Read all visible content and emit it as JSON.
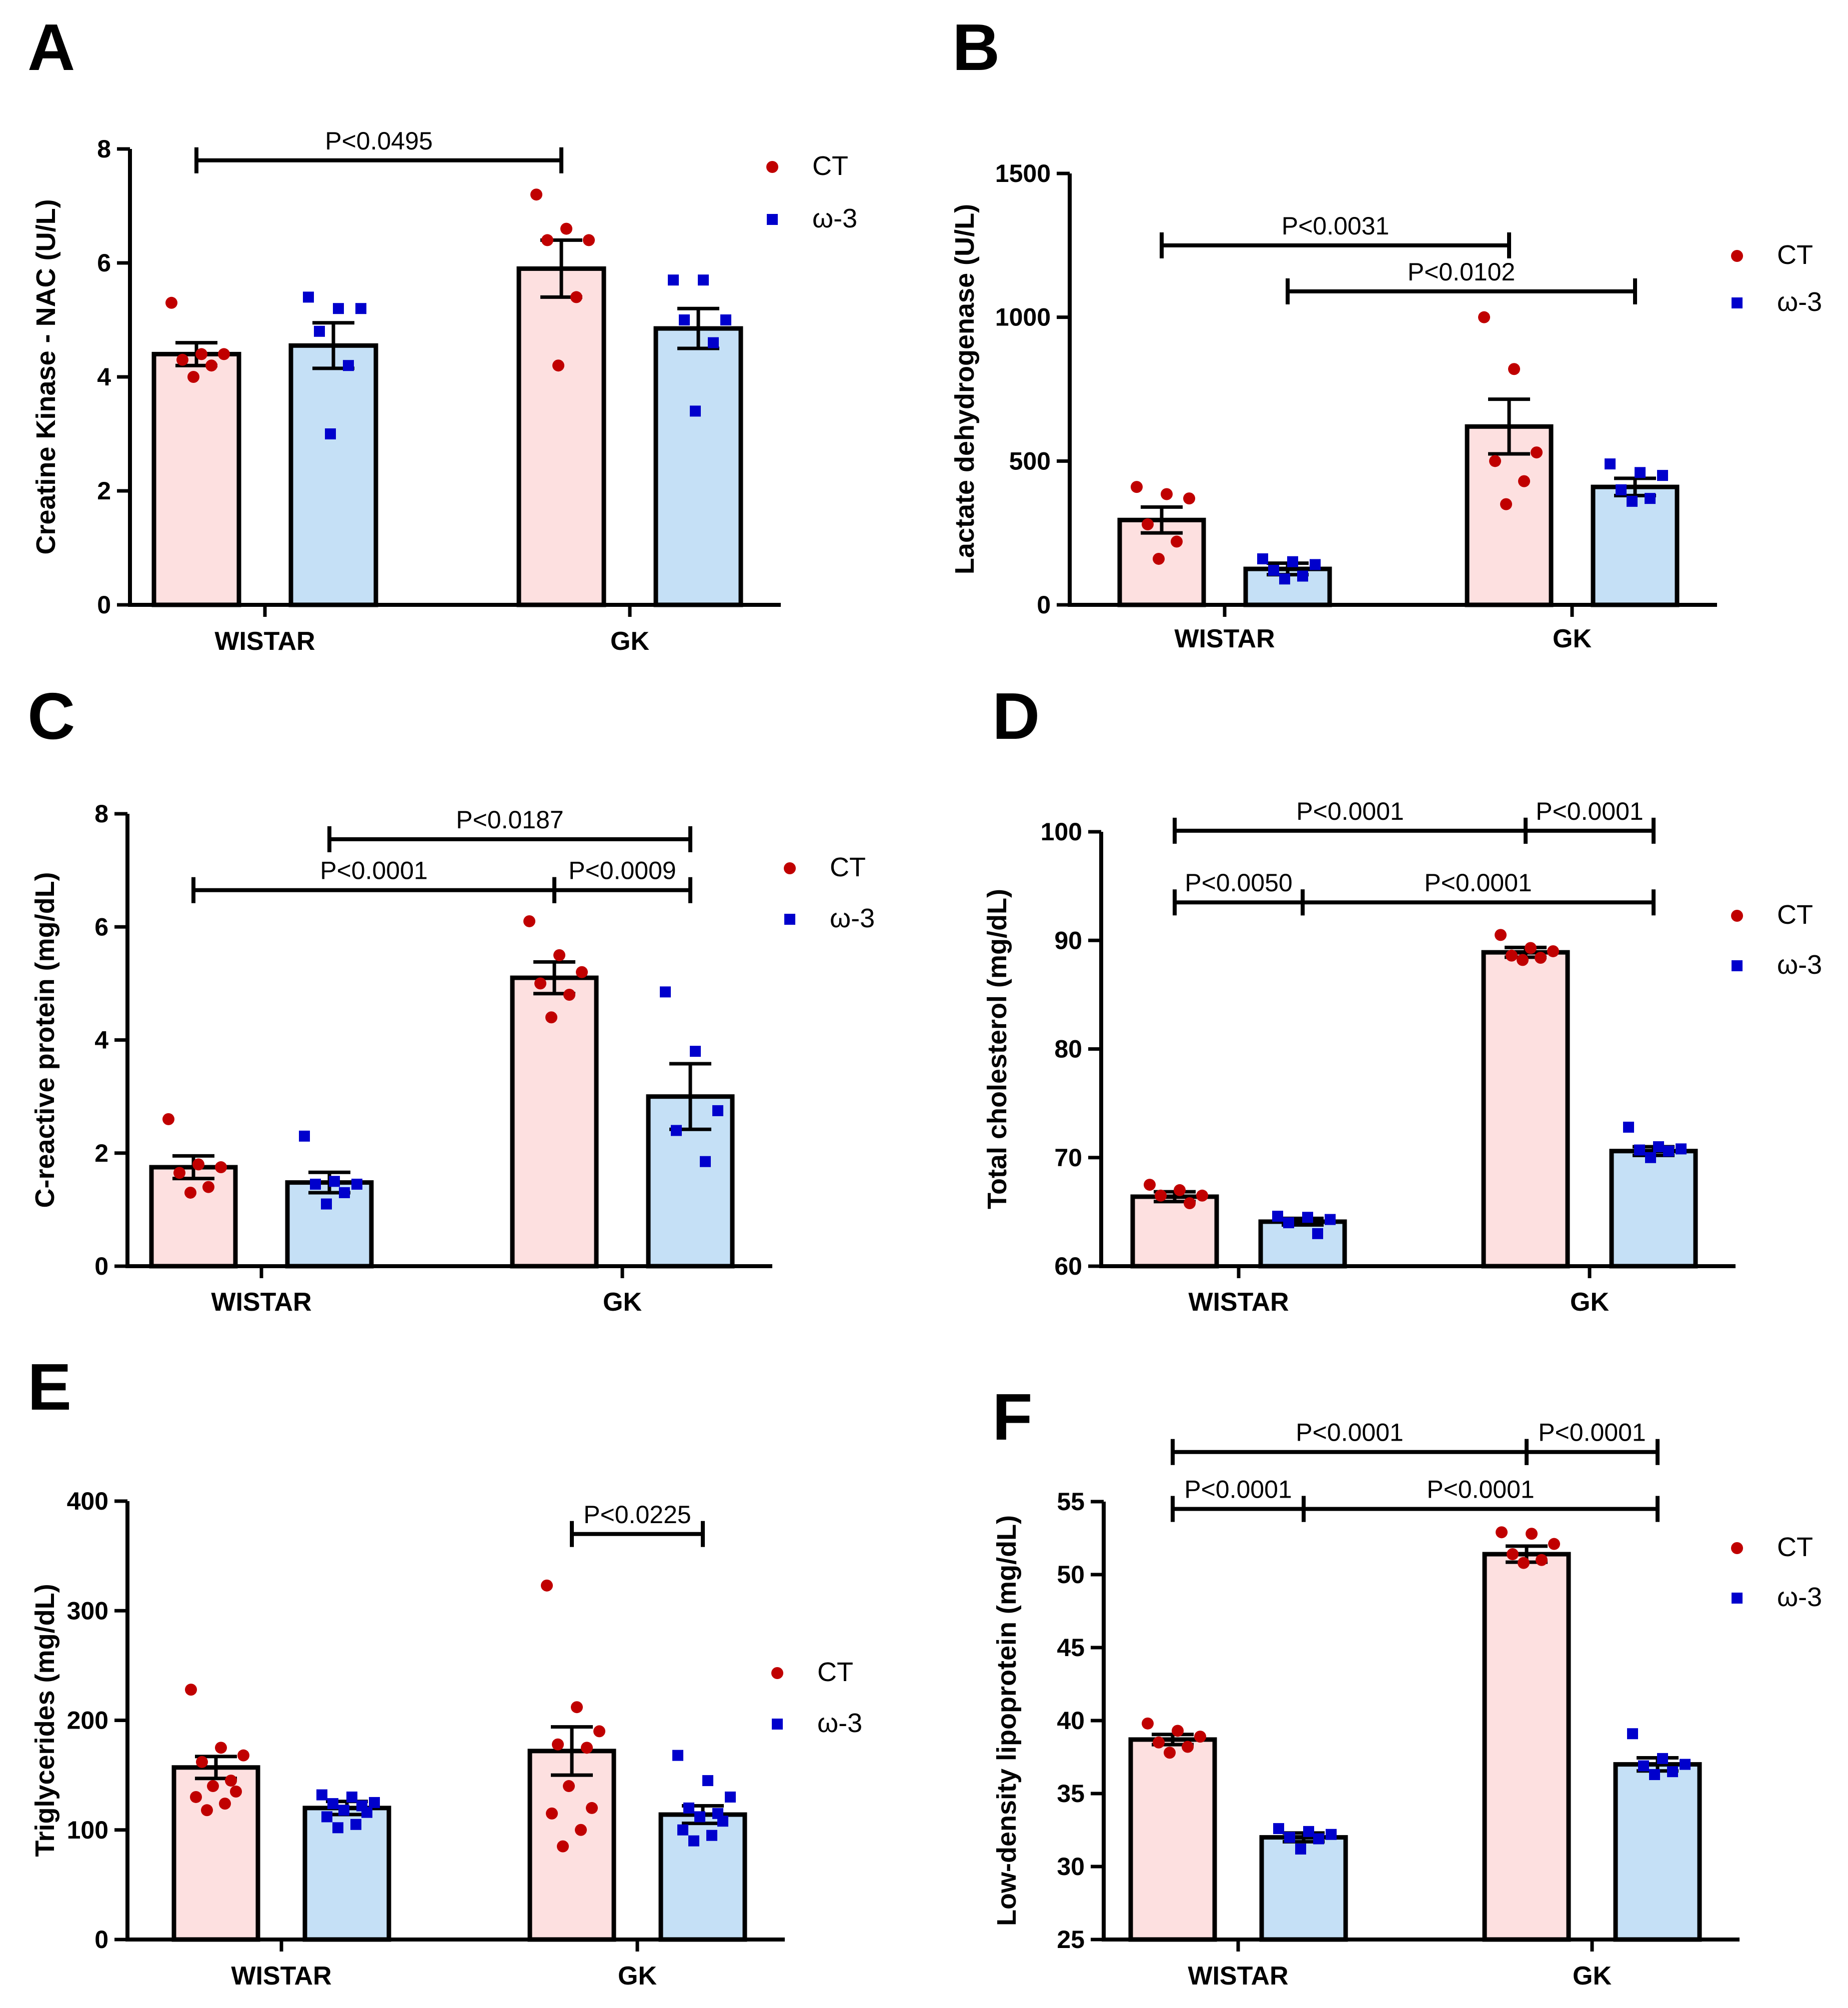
{
  "figure": {
    "colors": {
      "ct_fill": "#fde0e0",
      "w3_fill": "#c5e0f6",
      "ct_point": "#c00000",
      "w3_point": "#0000cc",
      "line": "#000000"
    }
  },
  "chart_data": [
    {
      "panel": "A",
      "type": "bar",
      "ylabel": "Creatine Kinase - NAC (U/L)",
      "yticks": [
        "0",
        "2",
        "4",
        "6",
        "8"
      ],
      "ylim": [
        0,
        8
      ],
      "categories": [
        "WISTAR",
        "GK"
      ],
      "legend": [
        "CT",
        "ω-3"
      ],
      "series": [
        {
          "name": "CT",
          "values": [
            4.4,
            5.9
          ],
          "sem": [
            0.2,
            0.5
          ],
          "points": [
            [
              5.3,
              4.4,
              4.4,
              4.3,
              4.2,
              4.0
            ],
            [
              7.2,
              6.6,
              6.4,
              6.4,
              5.4,
              4.2
            ]
          ]
        },
        {
          "name": "ω-3",
          "values": [
            4.55,
            4.85
          ],
          "sem": [
            0.4,
            0.35
          ],
          "points": [
            [
              5.4,
              5.2,
              5.2,
              4.8,
              4.2,
              3.0
            ],
            [
              5.7,
              5.7,
              5.0,
              5.0,
              4.6,
              3.4
            ]
          ]
        }
      ],
      "significance": [
        {
          "text": "P<0.0495",
          "from": [
            0,
            0
          ],
          "to": [
            1,
            0
          ],
          "y": 7.8
        }
      ]
    },
    {
      "panel": "B",
      "type": "bar",
      "ylabel": "Lactate dehydrogenase (U/L)",
      "yticks": [
        "0",
        "500",
        "1000",
        "1500"
      ],
      "ylim": [
        0,
        1500
      ],
      "categories": [
        "WISTAR",
        "GK"
      ],
      "legend": [
        "CT",
        "ω-3"
      ],
      "series": [
        {
          "name": "CT",
          "values": [
            295,
            620
          ],
          "sem": [
            45,
            95
          ],
          "points": [
            [
              410,
              385,
              370,
              280,
              220,
              160
            ],
            [
              1000,
              820,
              530,
              500,
              430,
              350
            ]
          ]
        },
        {
          "name": "ω-3",
          "values": [
            125,
            410
          ],
          "sem": [
            20,
            30
          ],
          "points": [
            [
              160,
              150,
              140,
              120,
              100,
              90
            ],
            [
              490,
              460,
              450,
              400,
              370,
              360
            ]
          ]
        }
      ],
      "significance": [
        {
          "text": "P<0.0031",
          "from": [
            0,
            0
          ],
          "to": [
            1,
            0
          ],
          "y": 1250
        },
        {
          "text": "P<0.0102",
          "from": [
            0,
            1
          ],
          "to": [
            1,
            1
          ],
          "y": 1090
        }
      ]
    },
    {
      "panel": "C",
      "type": "bar",
      "ylabel": "C-reactive protein (mg/dL)",
      "yticks": [
        "0",
        "2",
        "4",
        "6",
        "8"
      ],
      "ylim": [
        0,
        8
      ],
      "categories": [
        "WISTAR",
        "GK"
      ],
      "legend": [
        "CT",
        "ω-3"
      ],
      "series": [
        {
          "name": "CT",
          "values": [
            1.75,
            5.1
          ],
          "sem": [
            0.2,
            0.28
          ],
          "points": [
            [
              2.6,
              1.8,
              1.75,
              1.65,
              1.4,
              1.3
            ],
            [
              6.1,
              5.5,
              5.2,
              5.0,
              4.8,
              4.4
            ]
          ]
        },
        {
          "name": "ω-3",
          "values": [
            1.48,
            3.0
          ],
          "sem": [
            0.18,
            0.58
          ],
          "points": [
            [
              2.3,
              1.5,
              1.45,
              1.45,
              1.3,
              1.1
            ],
            [
              4.85,
              3.8,
              2.75,
              2.4,
              1.85
            ]
          ]
        }
      ],
      "significance": [
        {
          "text": "P<0.0187",
          "from": [
            0,
            1
          ],
          "to": [
            1,
            1
          ],
          "y": 7.55
        },
        {
          "text": "P<0.0001",
          "from": [
            0,
            0
          ],
          "to": [
            1,
            0
          ],
          "y": 6.65
        },
        {
          "text": "P<0.0009",
          "from": [
            1,
            0
          ],
          "to": [
            1,
            1
          ],
          "y": 6.65
        }
      ]
    },
    {
      "panel": "D",
      "type": "bar",
      "ylabel": "Total cholesterol (mg/dL)",
      "yticks": [
        "60",
        "70",
        "80",
        "90",
        "100"
      ],
      "ylim": [
        60,
        100
      ],
      "categories": [
        "WISTAR",
        "GK"
      ],
      "legend": [
        "CT",
        "ω-3"
      ],
      "series": [
        {
          "name": "CT",
          "values": [
            66.4,
            88.9
          ],
          "sem": [
            0.45,
            0.45
          ],
          "points": [
            [
              67.5,
              67.0,
              66.5,
              66.5,
              65.8
            ],
            [
              90.5,
              89.3,
              89.0,
              88.6,
              88.4,
              88.2
            ]
          ]
        },
        {
          "name": "ω-3",
          "values": [
            64.1,
            70.6
          ],
          "sem": [
            0.3,
            0.4
          ],
          "points": [
            [
              64.6,
              64.5,
              64.3,
              64.0,
              63.0
            ],
            [
              72.8,
              71.0,
              70.8,
              70.7,
              70.6,
              70.0
            ]
          ]
        }
      ],
      "significance": [
        {
          "text": "P<0.0001",
          "from": [
            0,
            0
          ],
          "to": [
            1,
            0
          ],
          "y": 100.1
        },
        {
          "text": "P<0.0001",
          "from": [
            1,
            0
          ],
          "to": [
            1,
            1
          ],
          "y": 100.1
        },
        {
          "text": "P<0.0050",
          "from": [
            0,
            0
          ],
          "to": [
            0,
            1
          ],
          "y": 93.5
        },
        {
          "text": "P<0.0001",
          "from": [
            0,
            1
          ],
          "to": [
            1,
            1
          ],
          "y": 93.5
        }
      ]
    },
    {
      "panel": "E",
      "type": "bar",
      "ylabel": "Triglycerides (mg/dL)",
      "yticks": [
        "0",
        "100",
        "200",
        "300",
        "400"
      ],
      "ylim": [
        0,
        400
      ],
      "categories": [
        "WISTAR",
        "GK"
      ],
      "legend": [
        "CT",
        "ω-3"
      ],
      "series": [
        {
          "name": "CT",
          "values": [
            157,
            172
          ],
          "sem": [
            10,
            22
          ],
          "points": [
            [
              228,
              175,
              168,
              162,
              145,
              140,
              135,
              130,
              124,
              118
            ],
            [
              323,
              212,
              190,
              178,
              175,
              140,
              120,
              115,
              100,
              85
            ]
          ]
        },
        {
          "name": "ω-3",
          "values": [
            120,
            114
          ],
          "sem": [
            6,
            8
          ],
          "points": [
            [
              132,
              130,
              125,
              124,
              122,
              118,
              116,
              112,
              105,
              102
            ],
            [
              168,
              145,
              130,
              120,
              115,
              112,
              108,
              100,
              95,
              90
            ]
          ]
        }
      ],
      "significance": [
        {
          "text": "P<0.0225",
          "from": [
            1,
            0
          ],
          "to": [
            1,
            1
          ],
          "y": 370
        }
      ]
    },
    {
      "panel": "F",
      "type": "bar",
      "ylabel": "Low-density lipoprotein (mg/dL)",
      "yticks": [
        "25",
        "30",
        "35",
        "40",
        "45",
        "50",
        "55"
      ],
      "ylim": [
        25,
        55
      ],
      "categories": [
        "WISTAR",
        "GK"
      ],
      "legend": [
        "CT",
        "ω-3"
      ],
      "series": [
        {
          "name": "CT",
          "values": [
            38.7,
            51.4
          ],
          "sem": [
            0.35,
            0.55
          ],
          "points": [
            [
              39.8,
              39.3,
              38.9,
              38.5,
              38.2,
              37.8
            ],
            [
              52.9,
              52.8,
              52.1,
              51.4,
              51.0,
              50.8
            ]
          ]
        },
        {
          "name": "ω-3",
          "values": [
            32.0,
            37.0
          ],
          "sem": [
            0.3,
            0.45
          ],
          "points": [
            [
              32.6,
              32.4,
              32.2,
              32.0,
              31.9,
              31.2
            ],
            [
              39.1,
              37.4,
              37.0,
              36.9,
              36.5,
              36.3
            ]
          ]
        }
      ],
      "significance": [
        {
          "text": "P<0.0001",
          "from": [
            0,
            0
          ],
          "to": [
            1,
            0
          ],
          "y": 58.4
        },
        {
          "text": "P<0.0001",
          "from": [
            1,
            0
          ],
          "to": [
            1,
            1
          ],
          "y": 58.4
        },
        {
          "text": "P<0.0001",
          "from": [
            0,
            0
          ],
          "to": [
            0,
            1
          ],
          "y": 54.5
        },
        {
          "text": "P<0.0001",
          "from": [
            0,
            1
          ],
          "to": [
            1,
            1
          ],
          "y": 54.5
        }
      ]
    }
  ]
}
